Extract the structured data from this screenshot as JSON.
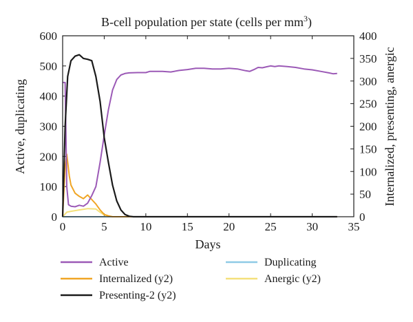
{
  "chart_data": {
    "type": "line",
    "title": "B-cell population per state (cells per mm",
    "title_superscript": "3",
    "title_suffix": ")",
    "xlabel": "Days",
    "ylabel": "Active, duplicating",
    "y2label": "Internalized, presenting, anergic",
    "xlim": [
      0,
      35
    ],
    "ylim": [
      0,
      600
    ],
    "y2lim": [
      0,
      400
    ],
    "xticks": [
      0,
      5,
      10,
      15,
      20,
      25,
      30,
      35
    ],
    "yticks": [
      0,
      100,
      200,
      300,
      400,
      500,
      600
    ],
    "y2ticks": [
      0,
      50,
      100,
      150,
      200,
      250,
      300,
      350,
      400
    ],
    "grid": false,
    "legend_position": "below",
    "series": [
      {
        "name": "Active",
        "axis": "y",
        "color": "#9b59b6",
        "points": [
          [
            0,
            445
          ],
          [
            0.3,
            445
          ],
          [
            0.5,
            100
          ],
          [
            0.7,
            40
          ],
          [
            1,
            35
          ],
          [
            1.5,
            33
          ],
          [
            2,
            38
          ],
          [
            2.5,
            35
          ],
          [
            3,
            45
          ],
          [
            3.5,
            70
          ],
          [
            4,
            100
          ],
          [
            4.5,
            180
          ],
          [
            5,
            270
          ],
          [
            5.5,
            355
          ],
          [
            6,
            420
          ],
          [
            6.5,
            455
          ],
          [
            7,
            470
          ],
          [
            7.5,
            475
          ],
          [
            8,
            477
          ],
          [
            9,
            478
          ],
          [
            10,
            478
          ],
          [
            10.5,
            482
          ],
          [
            12,
            482
          ],
          [
            13,
            480
          ],
          [
            14,
            485
          ],
          [
            15,
            488
          ],
          [
            16,
            492
          ],
          [
            17,
            492
          ],
          [
            18,
            490
          ],
          [
            19,
            490
          ],
          [
            20,
            492
          ],
          [
            21,
            490
          ],
          [
            22,
            484
          ],
          [
            22.5,
            482
          ],
          [
            23,
            488
          ],
          [
            23.5,
            495
          ],
          [
            24,
            494
          ],
          [
            24.5,
            497
          ],
          [
            25,
            500
          ],
          [
            25.5,
            498
          ],
          [
            26,
            500
          ],
          [
            27,
            498
          ],
          [
            28,
            495
          ],
          [
            29,
            490
          ],
          [
            30,
            487
          ],
          [
            31,
            482
          ],
          [
            32,
            477
          ],
          [
            32.5,
            474
          ],
          [
            33,
            475
          ]
        ]
      },
      {
        "name": "Internalized (y2)",
        "axis": "y2",
        "color": "#f0a524",
        "points": [
          [
            0,
            0
          ],
          [
            0.3,
            110
          ],
          [
            0.5,
            138
          ],
          [
            0.8,
            90
          ],
          [
            1,
            70
          ],
          [
            1.5,
            52
          ],
          [
            2,
            45
          ],
          [
            2.5,
            40
          ],
          [
            3,
            48
          ],
          [
            3.5,
            38
          ],
          [
            4,
            28
          ],
          [
            4.5,
            15
          ],
          [
            5,
            5
          ],
          [
            5.5,
            2
          ],
          [
            6,
            0
          ],
          [
            33,
            0
          ]
        ]
      },
      {
        "name": "Presenting-2 (y2)",
        "axis": "y2",
        "color": "#1a1a1a",
        "points": [
          [
            0,
            0
          ],
          [
            0.3,
            200
          ],
          [
            0.6,
            310
          ],
          [
            1,
            345
          ],
          [
            1.5,
            355
          ],
          [
            2,
            358
          ],
          [
            2.5,
            350
          ],
          [
            3,
            348
          ],
          [
            3.5,
            345
          ],
          [
            4,
            310
          ],
          [
            4.5,
            255
          ],
          [
            5,
            175
          ],
          [
            5.5,
            120
          ],
          [
            6,
            70
          ],
          [
            6.5,
            35
          ],
          [
            7,
            15
          ],
          [
            7.5,
            5
          ],
          [
            8,
            1
          ],
          [
            8.5,
            0
          ],
          [
            33,
            0
          ]
        ]
      },
      {
        "name": "Duplicating",
        "axis": "y",
        "color": "#8ecae6",
        "points": [
          [
            0,
            0
          ],
          [
            33,
            0
          ]
        ]
      },
      {
        "name": "Anergic (y2)",
        "axis": "y2",
        "color": "#f4e07a",
        "points": [
          [
            0,
            0
          ],
          [
            0.5,
            10
          ],
          [
            1,
            12
          ],
          [
            2,
            15
          ],
          [
            3,
            18
          ],
          [
            4,
            17
          ],
          [
            4.5,
            10
          ],
          [
            5,
            4
          ],
          [
            5.5,
            1
          ],
          [
            6,
            0
          ],
          [
            33,
            0
          ]
        ]
      }
    ]
  }
}
